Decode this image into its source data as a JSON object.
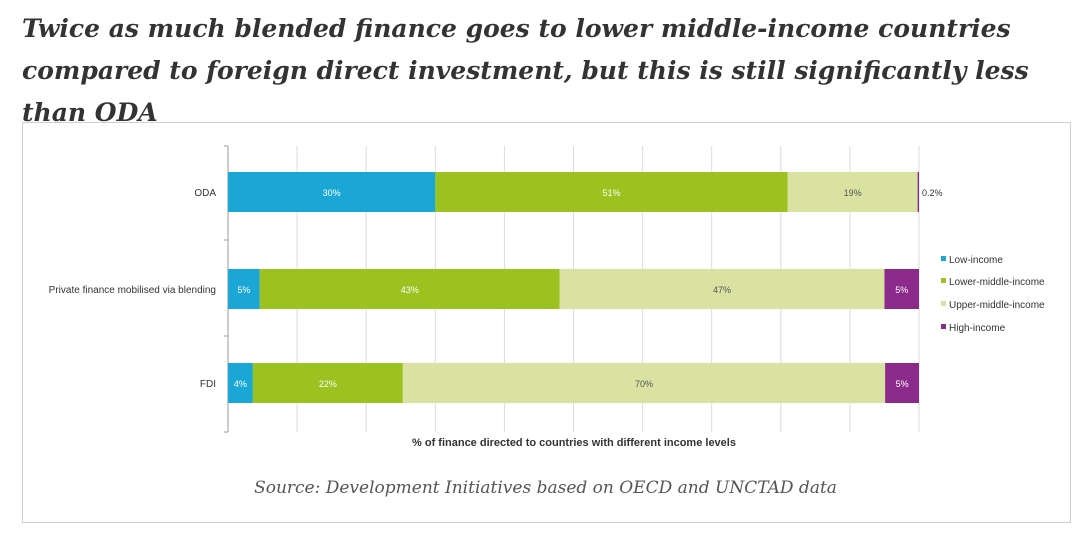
{
  "title": "Twice as much blended finance goes to lower middle-income countries compared to foreign direct investment, but this is still significantly less than ODA",
  "source": "Source: Development Initiatives based on OECD and UNCTAD data",
  "chart_data": {
    "type": "bar",
    "orientation": "horizontal-stacked-100",
    "categories": [
      "ODA",
      "Private finance mobilised via blending",
      "FDI"
    ],
    "series": [
      {
        "name": "Low-income",
        "color": "#1aa7d6",
        "values": [
          30,
          4.6,
          3.6
        ],
        "labels": [
          "30%",
          "5%",
          "4%"
        ]
      },
      {
        "name": "Lower-middle-income",
        "color": "#9cc21f",
        "values": [
          51,
          43.4,
          21.7
        ],
        "labels": [
          "51%",
          "43%",
          "22%"
        ]
      },
      {
        "name": "Upper-middle-income",
        "color": "#d9e2a1",
        "values": [
          18.8,
          47,
          69.8
        ],
        "labels": [
          "19%",
          "47%",
          "70%"
        ]
      },
      {
        "name": "High-income",
        "color": "#8c2a8c",
        "values": [
          0.2,
          5,
          4.9
        ],
        "labels": [
          "0.2%",
          "5%",
          "5%"
        ]
      }
    ],
    "xlabel": "% of finance directed to countries with different income levels",
    "xlim": [
      0,
      100
    ],
    "grid": true,
    "legend": "right"
  }
}
